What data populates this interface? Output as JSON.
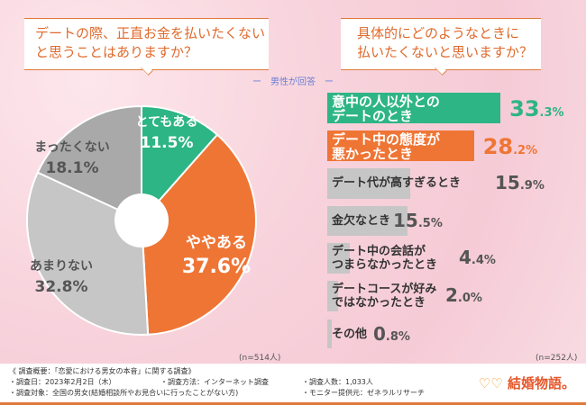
{
  "left_question": "デートの際、正直お金を払いたくないと思うことはありますか？",
  "left_question_lines": [
    "デートの際、正直お金を払いたくない",
    "と思うことはありますか？"
  ],
  "right_question_lines": [
    "具体的にどのようなときに",
    "払いたくないと思いますか？"
  ],
  "legend": "ー　男性が回答　ー",
  "colors": {
    "green": "#2db585",
    "orange": "#ef7535",
    "gray": "#c6c6c6",
    "dark_gray": "#a9a9a9"
  },
  "chart_data": [
    {
      "type": "pie",
      "n_label": "(n=514人)",
      "start": "top",
      "direction": "clockwise",
      "donut_hole": true,
      "slices": [
        {
          "label": "とてもある",
          "value": 11.5,
          "color": "#2db585"
        },
        {
          "label": "ややある",
          "value": 37.6,
          "color": "#ef7535"
        },
        {
          "label": "あまりない",
          "value": 32.8,
          "color": "#c6c6c6"
        },
        {
          "label": "まったくない",
          "value": 18.1,
          "color": "#a9a9a9"
        }
      ]
    },
    {
      "type": "bar",
      "orientation": "horizontal",
      "n_label": "(n=252人)",
      "categories": [
        [
          "意中の人以外との",
          "デートのとき"
        ],
        [
          "デート中の態度が",
          "悪かったとき"
        ],
        [
          "デート代が高すぎるとき"
        ],
        [
          "金欠なとき"
        ],
        [
          "デート中の会話が",
          "つまらなかったとき"
        ],
        [
          "デートコースが好み",
          "ではなかったとき"
        ],
        [
          "その他"
        ]
      ],
      "values": [
        33.3,
        28.2,
        15.9,
        15.5,
        4.4,
        2.0,
        0.8
      ],
      "colors": [
        "#2db585",
        "#ef7535",
        "#c6c6c6",
        "#c6c6c6",
        "#c6c6c6",
        "#c6c6c6",
        "#c6c6c6"
      ]
    }
  ],
  "footer": {
    "title": "《 調査概要：「恋愛における男女の本音」に関する調査》",
    "date": "・調査日：2023年2月2日（木）",
    "method": "・調査方法：インターネット調査",
    "count": "・調査人数：1,033人",
    "target": "・調査対象：全国の男女(結婚相談所やお見合いに行ったことがない方)",
    "provider": "・モニター提供元：ゼネラルリサーチ",
    "logo": "結婚物語。"
  }
}
